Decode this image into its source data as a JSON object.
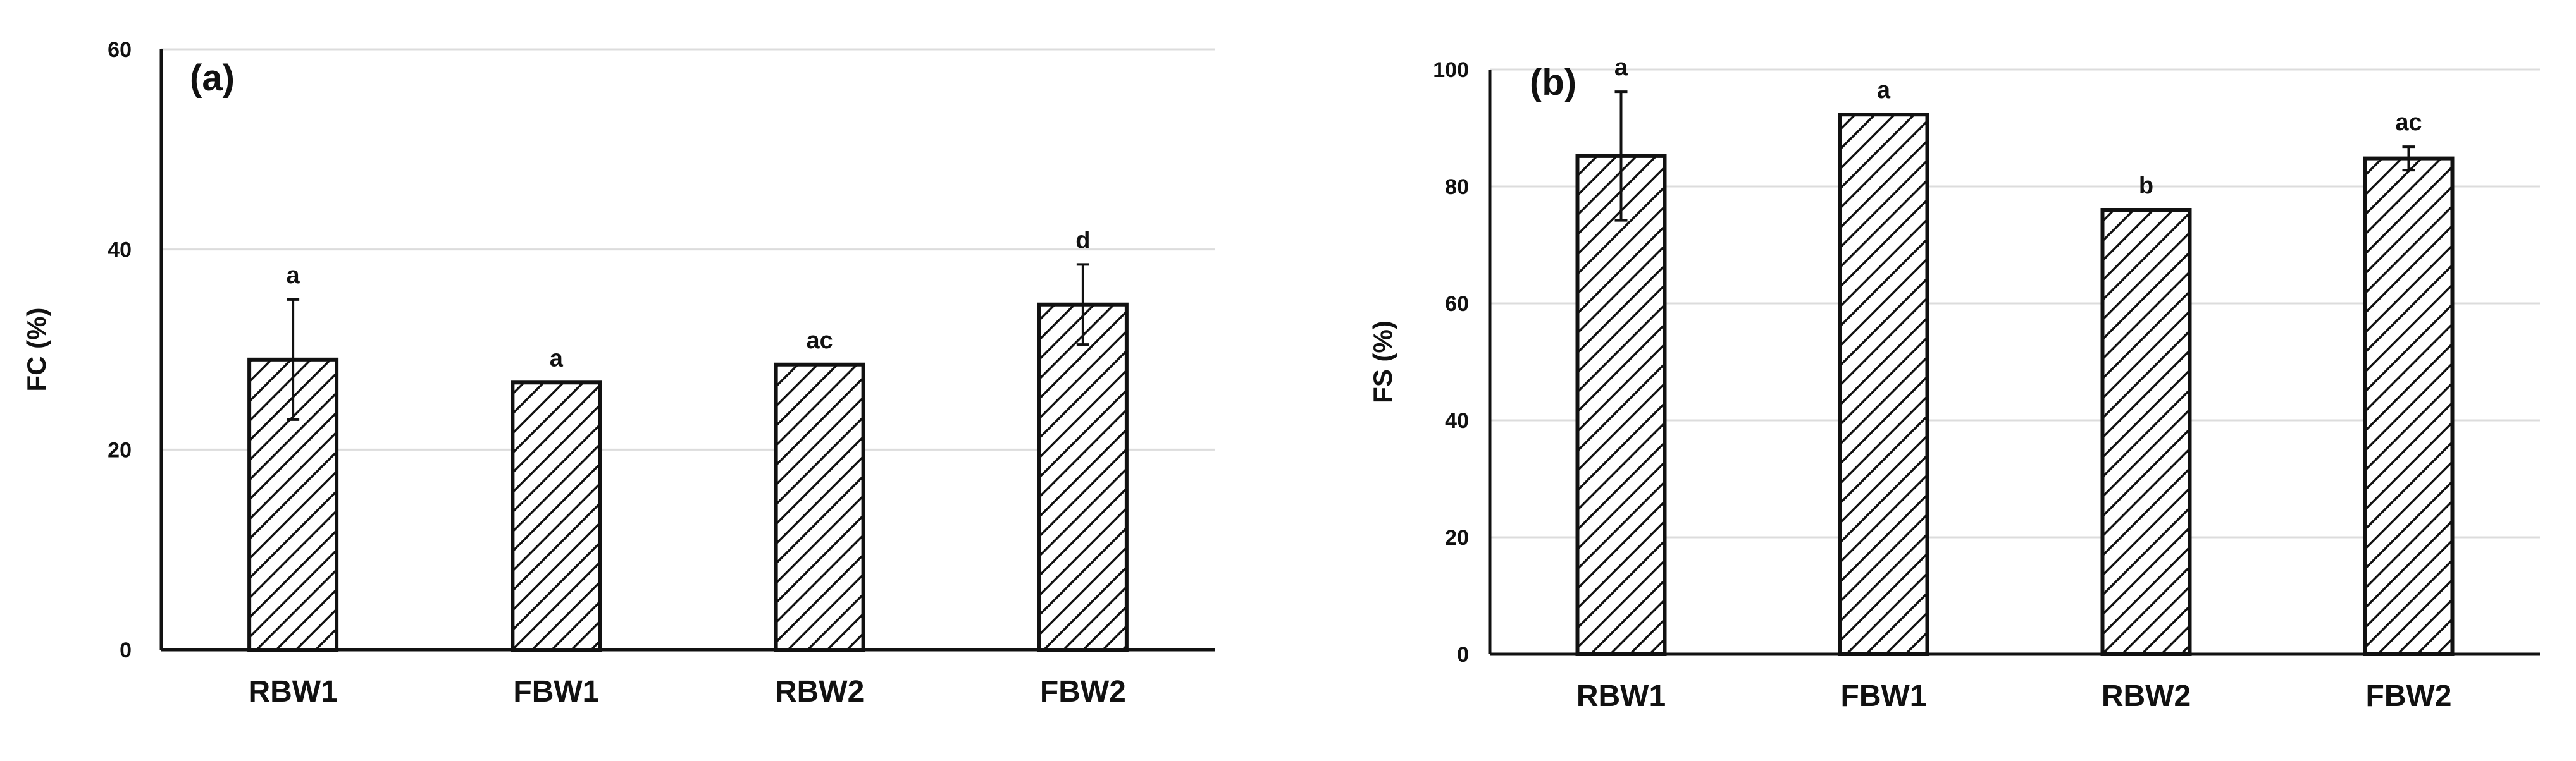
{
  "chart_data": [
    {
      "type": "bar",
      "panel_label": "(a)",
      "ylabel": "FC (%)",
      "categories": [
        "RBW1",
        "FBW1",
        "RBW2",
        "FBW2"
      ],
      "values": [
        29,
        26.7,
        28.5,
        34.5
      ],
      "errors": [
        6,
        0,
        0,
        4
      ],
      "letters": [
        "a",
        "a",
        "ac",
        "d"
      ],
      "ylim": [
        0,
        60
      ],
      "yticks": [
        0,
        20,
        40,
        60
      ],
      "grid": true,
      "pattern": "diagonal-hatch"
    },
    {
      "type": "bar",
      "panel_label": "(b)",
      "ylabel": "FS (%)",
      "categories": [
        "RBW1",
        "FBW1",
        "RBW2",
        "FBW2"
      ],
      "values": [
        85.2,
        92.3,
        76,
        84.8
      ],
      "errors": [
        11,
        0,
        0,
        2
      ],
      "letters": [
        "a",
        "a",
        "b",
        "ac"
      ],
      "ylim": [
        0,
        100
      ],
      "yticks": [
        0,
        20,
        40,
        60,
        80,
        100
      ],
      "grid": true,
      "pattern": "diagonal-hatch"
    }
  ]
}
